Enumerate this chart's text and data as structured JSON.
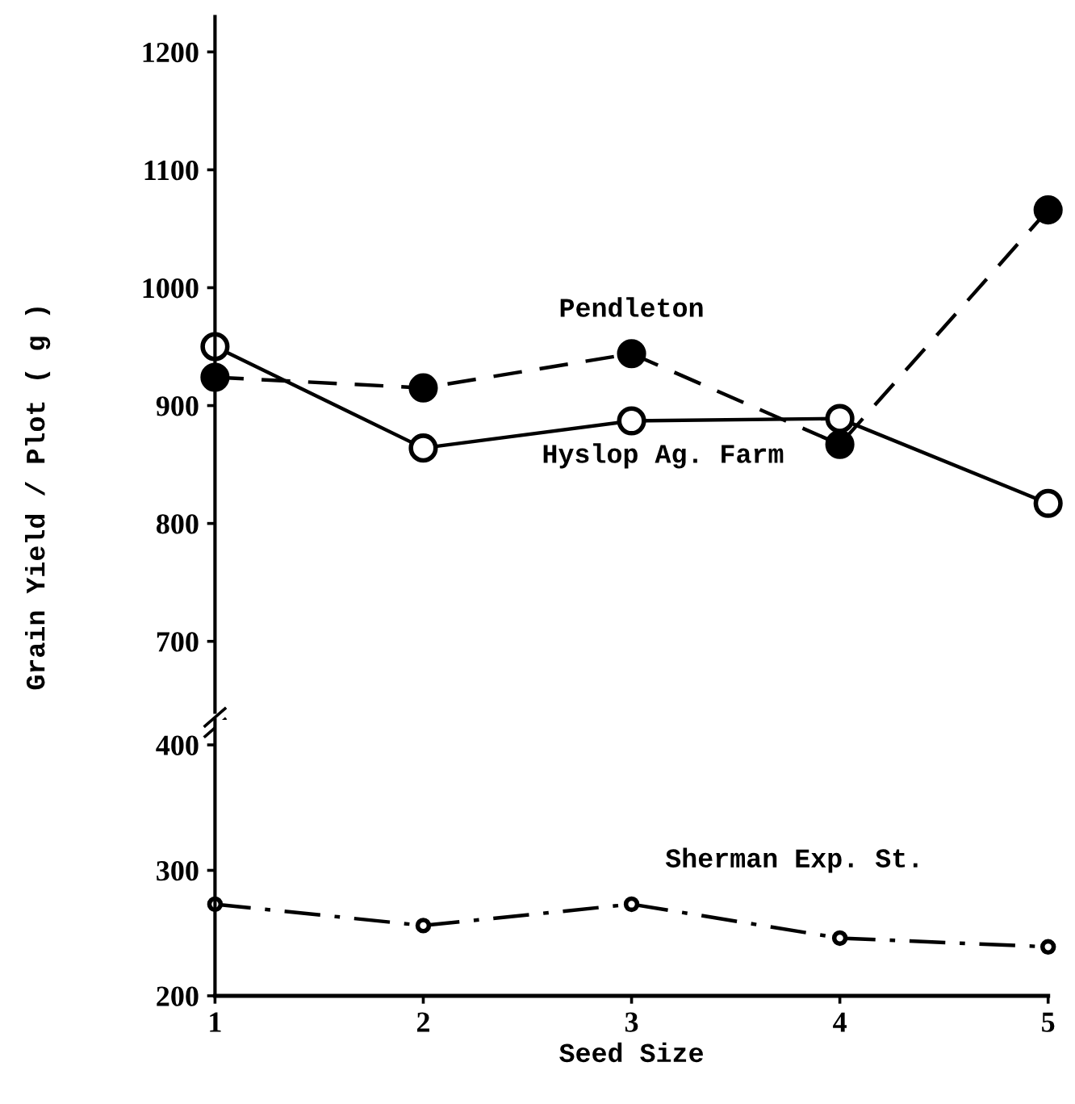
{
  "chart_data": [
    {
      "type": "line",
      "ylabel": "Grain Yield / Plot ( g )",
      "x": [
        1,
        2,
        3,
        4,
        5
      ],
      "xlim": [
        1,
        5
      ],
      "xticks": [
        1,
        2,
        3,
        4,
        5
      ],
      "ylim": [
        640,
        1230
      ],
      "yticks": [
        700,
        800,
        900,
        1000,
        1100,
        1200
      ],
      "tick_labels": "y",
      "grid": false,
      "legend": false,
      "marker": "circle",
      "series": [
        {
          "name": "Pendleton",
          "color": "#000000",
          "line_style": "dashed",
          "values": [
            924,
            915,
            944,
            867,
            1066
          ]
        },
        {
          "name": "Hyslop Ag. Farm",
          "color": "#000000",
          "line_style": "solid",
          "values": [
            950,
            864,
            887,
            889,
            817
          ]
        }
      ]
    },
    {
      "type": "line",
      "xlabel": "Seed Size",
      "x": [
        1,
        2,
        3,
        4,
        5
      ],
      "xlim": [
        1,
        5
      ],
      "xticks": [
        1,
        2,
        3,
        4,
        5
      ],
      "ylim": [
        200,
        420
      ],
      "yticks": [
        200,
        300,
        400
      ],
      "grid": false,
      "legend": false,
      "marker": "circle",
      "series": [
        {
          "name": "Sherman Exp. St.",
          "color": "#000000",
          "line_style": "dashdot",
          "values": [
            273,
            256,
            273,
            246,
            239
          ]
        }
      ]
    }
  ]
}
